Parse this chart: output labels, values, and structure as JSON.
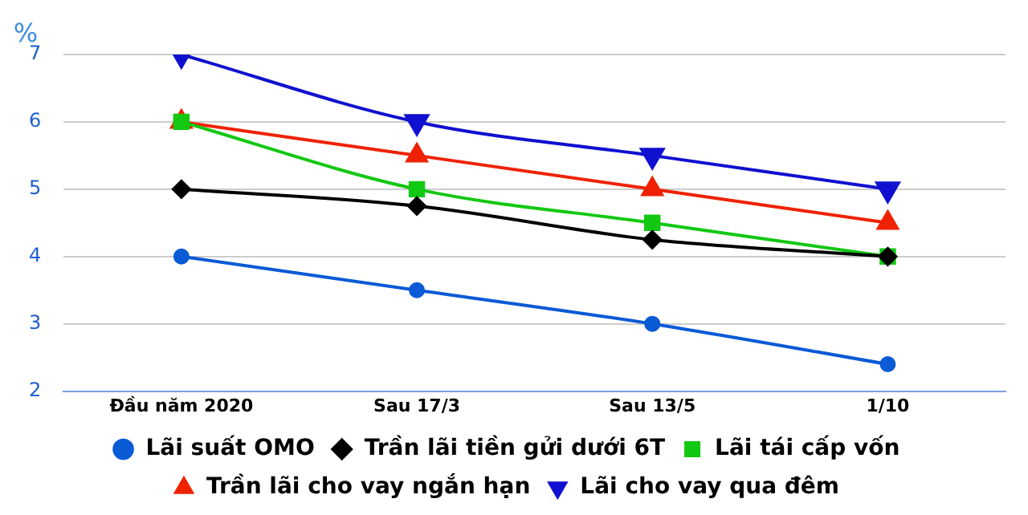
{
  "chart_data": {
    "type": "line",
    "ylabel": "%",
    "categories": [
      "Đầu năm 2020",
      "Sau 17/3",
      "Sau 13/5",
      "1/10"
    ],
    "series": [
      {
        "name": "Lãi suất OMO",
        "color": "#0b5ad6",
        "marker": "circle",
        "values": [
          4,
          3.5,
          3,
          2.4
        ]
      },
      {
        "name": "Trần lãi tiền gửi dưới 6T",
        "color": "#000000",
        "marker": "diamond",
        "values": [
          5,
          4.75,
          4.25,
          4
        ]
      },
      {
        "name": "Lãi tái cấp vốn",
        "color": "#12c812",
        "marker": "square",
        "values": [
          6,
          5,
          4.5,
          4
        ]
      },
      {
        "name": "Trần lãi cho vay ngắn hạn",
        "color": "#ee2200",
        "marker": "triangle",
        "values": [
          6,
          5.5,
          5,
          4.5
        ]
      },
      {
        "name": "Lãi cho vay qua đêm",
        "color": "#1010d0",
        "marker": "triangle-down",
        "values": [
          7,
          6,
          5.5,
          5
        ]
      }
    ],
    "ylim": [
      2,
      7
    ],
    "yticks": [
      2,
      3,
      4,
      5,
      6,
      7
    ],
    "grid": "y",
    "legend": "bottom"
  }
}
